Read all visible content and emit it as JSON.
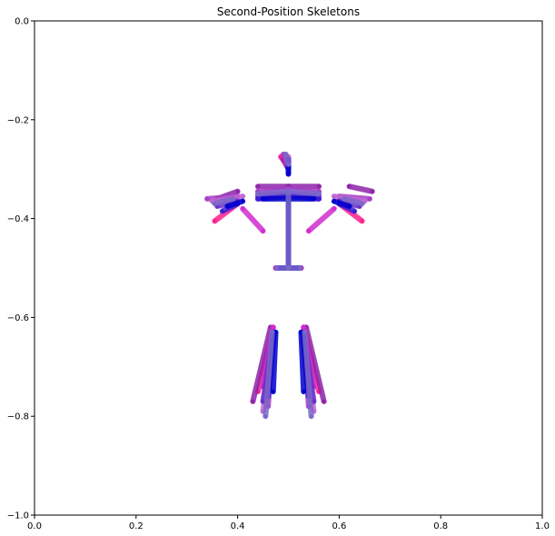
{
  "chart_data": {
    "type": "line",
    "title": "Second-Position Skeletons",
    "xlabel": "",
    "ylabel": "",
    "xlim": [
      0.0,
      1.0
    ],
    "ylim": [
      -1.0,
      0.0
    ],
    "xticks": [
      0.0,
      0.2,
      0.4,
      0.6,
      0.8,
      1.0
    ],
    "xtick_labels": [
      "0.0",
      "0.2",
      "0.4",
      "0.6",
      "0.8",
      "1.0"
    ],
    "yticks": [
      0.0,
      -0.2,
      -0.4,
      -0.6,
      -0.8,
      -1.0
    ],
    "ytick_labels": [
      "0.0",
      "−0.2",
      "−0.4",
      "−0.6",
      "−0.8",
      "−1.0"
    ],
    "grid": false,
    "legend": "none",
    "colors": [
      "#0000cc",
      "#3a1fd6",
      "#6a2bc9",
      "#8e24aa",
      "#a53fc4",
      "#c266d6",
      "#ff1f8e",
      "#d12cd1",
      "#7b68c8"
    ],
    "series": [
      {
        "color": "#ff1f8e",
        "values": [
          {
            "x": 0.485,
            "y": -0.275
          },
          {
            "x": 0.5,
            "y": -0.295
          },
          {
            "x": 0.5,
            "y": -0.34
          },
          {
            "x": 0.5,
            "y": -0.5
          },
          {
            "x": 0.5,
            "y": -0.34
          },
          {
            "x": 0.44,
            "y": -0.35
          },
          {
            "x": 0.4,
            "y": -0.37
          },
          {
            "x": 0.355,
            "y": -0.405
          },
          {
            "x": 0.5,
            "y": -0.34
          },
          {
            "x": 0.56,
            "y": -0.35
          },
          {
            "x": 0.6,
            "y": -0.37
          },
          {
            "x": 0.645,
            "y": -0.405
          },
          {
            "x": 0.5,
            "y": -0.5
          },
          {
            "x": 0.475,
            "y": -0.5
          },
          {
            "x": 0.47,
            "y": -0.62
          },
          {
            "x": 0.44,
            "y": -0.75
          },
          {
            "x": 0.5,
            "y": -0.5
          },
          {
            "x": 0.525,
            "y": -0.5
          },
          {
            "x": 0.53,
            "y": -0.62
          },
          {
            "x": 0.56,
            "y": -0.75
          }
        ]
      },
      {
        "color": "#8e24aa",
        "values": [
          {
            "x": 0.49,
            "y": -0.28
          },
          {
            "x": 0.5,
            "y": -0.3
          },
          {
            "x": 0.5,
            "y": -0.335
          },
          {
            "x": 0.5,
            "y": -0.5
          },
          {
            "x": 0.5,
            "y": -0.335
          },
          {
            "x": 0.44,
            "y": -0.335
          },
          {
            "x": 0.4,
            "y": -0.345
          },
          {
            "x": 0.36,
            "y": -0.36
          },
          {
            "x": 0.5,
            "y": -0.335
          },
          {
            "x": 0.56,
            "y": -0.335
          },
          {
            "x": 0.62,
            "y": -0.335
          },
          {
            "x": 0.665,
            "y": -0.345
          },
          {
            "x": 0.5,
            "y": -0.5
          },
          {
            "x": 0.475,
            "y": -0.5
          },
          {
            "x": 0.465,
            "y": -0.62
          },
          {
            "x": 0.43,
            "y": -0.77
          },
          {
            "x": 0.5,
            "y": -0.5
          },
          {
            "x": 0.525,
            "y": -0.5
          },
          {
            "x": 0.535,
            "y": -0.62
          },
          {
            "x": 0.57,
            "y": -0.77
          }
        ]
      },
      {
        "color": "#a53fc4",
        "values": [
          {
            "x": 0.49,
            "y": -0.27
          },
          {
            "x": 0.5,
            "y": -0.29
          },
          {
            "x": 0.5,
            "y": -0.34
          },
          {
            "x": 0.5,
            "y": -0.5
          },
          {
            "x": 0.5,
            "y": -0.34
          },
          {
            "x": 0.44,
            "y": -0.345
          },
          {
            "x": 0.4,
            "y": -0.355
          },
          {
            "x": 0.34,
            "y": -0.36
          },
          {
            "x": 0.5,
            "y": -0.34
          },
          {
            "x": 0.56,
            "y": -0.345
          },
          {
            "x": 0.6,
            "y": -0.355
          },
          {
            "x": 0.66,
            "y": -0.36
          },
          {
            "x": 0.5,
            "y": -0.5
          },
          {
            "x": 0.478,
            "y": -0.5
          },
          {
            "x": 0.47,
            "y": -0.63
          },
          {
            "x": 0.46,
            "y": -0.78
          },
          {
            "x": 0.5,
            "y": -0.5
          },
          {
            "x": 0.522,
            "y": -0.5
          },
          {
            "x": 0.53,
            "y": -0.63
          },
          {
            "x": 0.54,
            "y": -0.78
          }
        ]
      },
      {
        "color": "#c266d6",
        "values": [
          {
            "x": 0.5,
            "y": -0.275
          },
          {
            "x": 0.5,
            "y": -0.295
          },
          {
            "x": 0.5,
            "y": -0.345
          },
          {
            "x": 0.5,
            "y": -0.5
          },
          {
            "x": 0.5,
            "y": -0.345
          },
          {
            "x": 0.45,
            "y": -0.35
          },
          {
            "x": 0.41,
            "y": -0.355
          },
          {
            "x": 0.35,
            "y": -0.365
          },
          {
            "x": 0.5,
            "y": -0.345
          },
          {
            "x": 0.55,
            "y": -0.35
          },
          {
            "x": 0.59,
            "y": -0.355
          },
          {
            "x": 0.65,
            "y": -0.365
          },
          {
            "x": 0.5,
            "y": -0.5
          },
          {
            "x": 0.48,
            "y": -0.5
          },
          {
            "x": 0.47,
            "y": -0.63
          },
          {
            "x": 0.45,
            "y": -0.79
          },
          {
            "x": 0.5,
            "y": -0.5
          },
          {
            "x": 0.52,
            "y": -0.5
          },
          {
            "x": 0.53,
            "y": -0.63
          },
          {
            "x": 0.55,
            "y": -0.79
          }
        ]
      },
      {
        "color": "#d12cd1",
        "values": [
          {
            "x": 0.495,
            "y": -0.28
          },
          {
            "x": 0.5,
            "y": -0.3
          },
          {
            "x": 0.5,
            "y": -0.35
          },
          {
            "x": 0.5,
            "y": -0.5
          },
          {
            "x": 0.5,
            "y": -0.35
          },
          {
            "x": 0.44,
            "y": -0.36
          },
          {
            "x": 0.41,
            "y": -0.38
          },
          {
            "x": 0.45,
            "y": -0.425
          },
          {
            "x": 0.5,
            "y": -0.35
          },
          {
            "x": 0.56,
            "y": -0.36
          },
          {
            "x": 0.59,
            "y": -0.38
          },
          {
            "x": 0.54,
            "y": -0.425
          },
          {
            "x": 0.5,
            "y": -0.5
          },
          {
            "x": 0.476,
            "y": -0.5
          },
          {
            "x": 0.47,
            "y": -0.62
          },
          {
            "x": 0.45,
            "y": -0.74
          },
          {
            "x": 0.5,
            "y": -0.5
          },
          {
            "x": 0.524,
            "y": -0.5
          },
          {
            "x": 0.53,
            "y": -0.62
          },
          {
            "x": 0.55,
            "y": -0.74
          }
        ]
      },
      {
        "color": "#6a2bc9",
        "values": [
          {
            "x": 0.5,
            "y": -0.28
          },
          {
            "x": 0.5,
            "y": -0.3
          },
          {
            "x": 0.5,
            "y": -0.35
          },
          {
            "x": 0.5,
            "y": -0.5
          },
          {
            "x": 0.5,
            "y": -0.35
          },
          {
            "x": 0.44,
            "y": -0.355
          },
          {
            "x": 0.4,
            "y": -0.365
          },
          {
            "x": 0.36,
            "y": -0.375
          },
          {
            "x": 0.5,
            "y": -0.35
          },
          {
            "x": 0.56,
            "y": -0.355
          },
          {
            "x": 0.6,
            "y": -0.365
          },
          {
            "x": 0.64,
            "y": -0.375
          },
          {
            "x": 0.5,
            "y": -0.5
          },
          {
            "x": 0.478,
            "y": -0.5
          },
          {
            "x": 0.47,
            "y": -0.63
          },
          {
            "x": 0.45,
            "y": -0.77
          },
          {
            "x": 0.5,
            "y": -0.5
          },
          {
            "x": 0.522,
            "y": -0.5
          },
          {
            "x": 0.53,
            "y": -0.63
          },
          {
            "x": 0.55,
            "y": -0.77
          }
        ]
      },
      {
        "color": "#3a1fd6",
        "values": [
          {
            "x": 0.5,
            "y": -0.285
          },
          {
            "x": 0.5,
            "y": -0.305
          },
          {
            "x": 0.5,
            "y": -0.355
          },
          {
            "x": 0.5,
            "y": -0.5
          },
          {
            "x": 0.5,
            "y": -0.355
          },
          {
            "x": 0.44,
            "y": -0.36
          },
          {
            "x": 0.4,
            "y": -0.37
          },
          {
            "x": 0.37,
            "y": -0.385
          },
          {
            "x": 0.5,
            "y": -0.355
          },
          {
            "x": 0.56,
            "y": -0.36
          },
          {
            "x": 0.6,
            "y": -0.37
          },
          {
            "x": 0.63,
            "y": -0.385
          },
          {
            "x": 0.5,
            "y": -0.5
          },
          {
            "x": 0.48,
            "y": -0.5
          },
          {
            "x": 0.472,
            "y": -0.63
          },
          {
            "x": 0.46,
            "y": -0.76
          },
          {
            "x": 0.5,
            "y": -0.5
          },
          {
            "x": 0.52,
            "y": -0.5
          },
          {
            "x": 0.528,
            "y": -0.63
          },
          {
            "x": 0.54,
            "y": -0.76
          }
        ]
      },
      {
        "color": "#0000cc",
        "values": [
          {
            "x": 0.5,
            "y": -0.29
          },
          {
            "x": 0.5,
            "y": -0.31
          },
          {
            "x": 0.5,
            "y": -0.36
          },
          {
            "x": 0.5,
            "y": -0.5
          },
          {
            "x": 0.5,
            "y": -0.36
          },
          {
            "x": 0.45,
            "y": -0.36
          },
          {
            "x": 0.41,
            "y": -0.365
          },
          {
            "x": 0.38,
            "y": -0.375
          },
          {
            "x": 0.5,
            "y": -0.36
          },
          {
            "x": 0.55,
            "y": -0.36
          },
          {
            "x": 0.59,
            "y": -0.365
          },
          {
            "x": 0.62,
            "y": -0.375
          },
          {
            "x": 0.5,
            "y": -0.5
          },
          {
            "x": 0.482,
            "y": -0.5
          },
          {
            "x": 0.475,
            "y": -0.63
          },
          {
            "x": 0.47,
            "y": -0.75
          },
          {
            "x": 0.5,
            "y": -0.5
          },
          {
            "x": 0.518,
            "y": -0.5
          },
          {
            "x": 0.525,
            "y": -0.63
          },
          {
            "x": 0.53,
            "y": -0.75
          }
        ]
      },
      {
        "color": "#7b68c8",
        "values": [
          {
            "x": 0.495,
            "y": -0.27
          },
          {
            "x": 0.5,
            "y": -0.29
          },
          {
            "x": 0.5,
            "y": -0.345
          },
          {
            "x": 0.5,
            "y": -0.5
          },
          {
            "x": 0.5,
            "y": -0.345
          },
          {
            "x": 0.44,
            "y": -0.35
          },
          {
            "x": 0.39,
            "y": -0.36
          },
          {
            "x": 0.355,
            "y": -0.37
          },
          {
            "x": 0.5,
            "y": -0.345
          },
          {
            "x": 0.56,
            "y": -0.35
          },
          {
            "x": 0.61,
            "y": -0.36
          },
          {
            "x": 0.645,
            "y": -0.37
          },
          {
            "x": 0.5,
            "y": -0.5
          },
          {
            "x": 0.477,
            "y": -0.5
          },
          {
            "x": 0.468,
            "y": -0.63
          },
          {
            "x": 0.455,
            "y": -0.8
          },
          {
            "x": 0.5,
            "y": -0.5
          },
          {
            "x": 0.523,
            "y": -0.5
          },
          {
            "x": 0.532,
            "y": -0.63
          },
          {
            "x": 0.545,
            "y": -0.8
          }
        ]
      }
    ]
  }
}
